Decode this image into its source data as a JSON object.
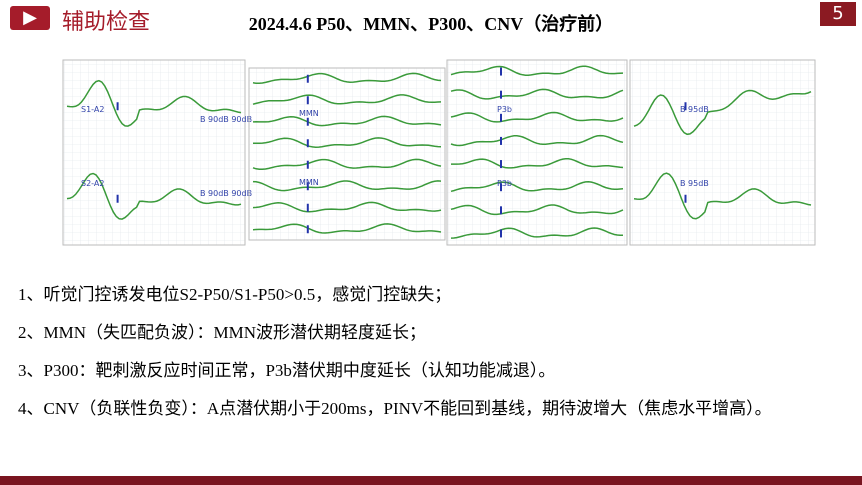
{
  "header": {
    "title": "辅助检查",
    "page_number": "5"
  },
  "slide_title": "2024.4.6 P50、MMN、P300、CNV（治疗前）",
  "panels": [
    {
      "labels": [
        "S1-A2",
        "S2-A2",
        "B 90dB 90dB",
        "B 90dB 90dB"
      ]
    },
    {
      "labels": [
        "MMN",
        "MMN"
      ]
    },
    {
      "labels": [
        "P3b",
        "P3b"
      ]
    },
    {
      "labels": [
        "B 95dB",
        "B 95dB"
      ]
    }
  ],
  "findings": [
    "1、听觉门控诱发电位S2-P50/S1-P50>0.5，感觉门控缺失；",
    "2、MMN（失匹配负波）：MMN波形潜伏期轻度延长；",
    "3、P300：靶刺激反应时间正常，P3b潜伏期中度延长（认知功能减退）。",
    "4、CNV（负联性负变）：A点潜伏期小于200ms，PINV不能回到基线，期待波增大（焦虑水平增高）。"
  ]
}
